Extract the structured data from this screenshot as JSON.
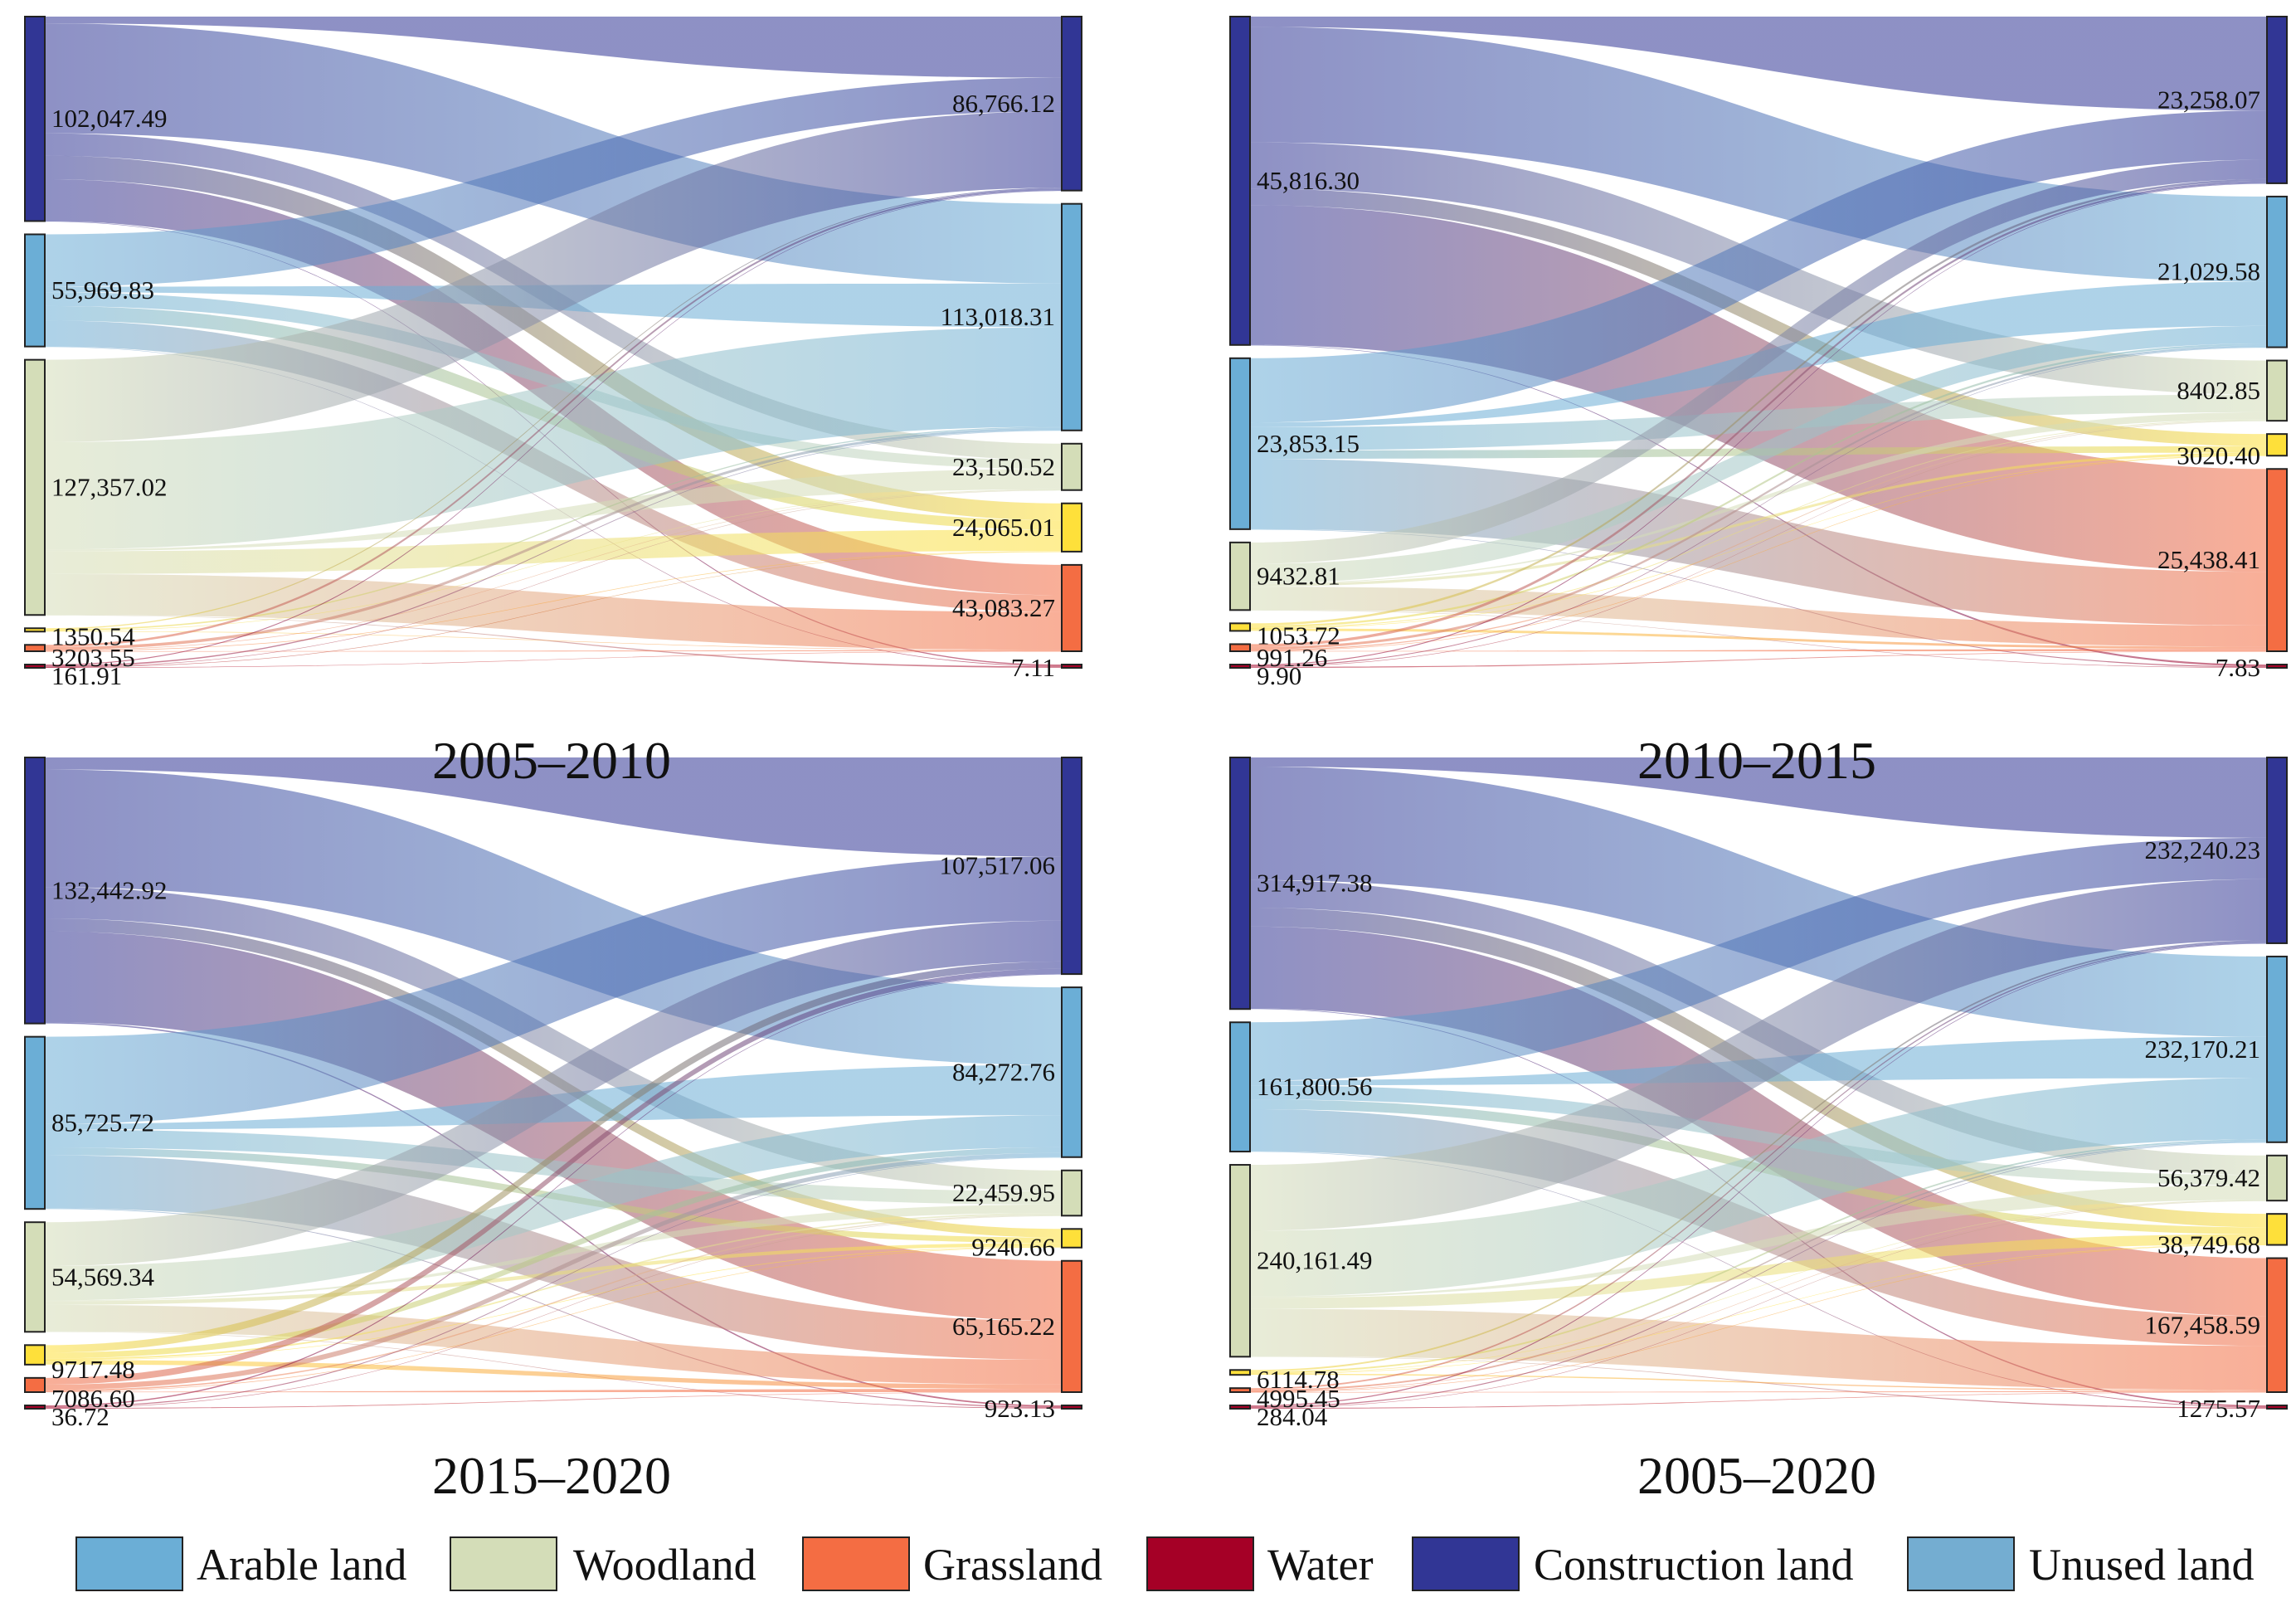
{
  "colors": {
    "Arable land": "#6BAED6",
    "Woodland": "#D4DDB8",
    "Grassland": "#F46D43",
    "Water": "#A50026",
    "Construction land": "#313695",
    "Unused land": "#FEE03A",
    "Unused land legend": "#74ADD1"
  },
  "legend": [
    {
      "label": "Arable land",
      "color": "#6BAED6"
    },
    {
      "label": "Woodland",
      "color": "#D4DDB8"
    },
    {
      "label": "Grassland",
      "color": "#F46D43"
    },
    {
      "label": "Water",
      "color": "#A50026"
    },
    {
      "label": "Construction land",
      "color": "#313695"
    },
    {
      "label": "Unused land",
      "color": "#74ADD1"
    }
  ],
  "panels": [
    {
      "title": "2005–2010",
      "left": [
        {
          "category": "Construction land",
          "label": "102,047.49",
          "value": 102047.49
        },
        {
          "category": "Arable land",
          "label": "55,969.83",
          "value": 55969.83
        },
        {
          "category": "Woodland",
          "label": "127,357.02",
          "value": 127357.02
        },
        {
          "category": "Unused land",
          "label": "1350.54",
          "value": 1350.54
        },
        {
          "category": "Grassland",
          "label": "3203.55",
          "value": 3203.55
        },
        {
          "category": "Water",
          "label": "161.91",
          "value": 161.91
        }
      ],
      "right": [
        {
          "category": "Construction land",
          "label": "86,766.12",
          "value": 86766.12
        },
        {
          "category": "Arable land",
          "label": "113,018.31",
          "value": 113018.31
        },
        {
          "category": "Woodland",
          "label": "23,150.52",
          "value": 23150.52
        },
        {
          "category": "Unused land",
          "label": "24,065.01",
          "value": 24065.01
        },
        {
          "category": "Grassland",
          "label": "43,083.27",
          "value": 43083.27
        },
        {
          "category": "Water",
          "label": "7.11",
          "value": 7.11
        }
      ]
    },
    {
      "title": "2010–2015",
      "left": [
        {
          "category": "Construction land",
          "label": "45,816.30",
          "value": 45816.3
        },
        {
          "category": "Arable land",
          "label": "23,853.15",
          "value": 23853.15
        },
        {
          "category": "Woodland",
          "label": "9432.81",
          "value": 9432.81
        },
        {
          "category": "Unused land",
          "label": "1053.72",
          "value": 1053.72
        },
        {
          "category": "Grassland",
          "label": "991.26",
          "value": 991.26
        },
        {
          "category": "Water",
          "label": "9.90",
          "value": 9.9
        }
      ],
      "right": [
        {
          "category": "Construction land",
          "label": "23,258.07",
          "value": 23258.07
        },
        {
          "category": "Arable land",
          "label": "21,029.58",
          "value": 21029.58
        },
        {
          "category": "Woodland",
          "label": "8402.85",
          "value": 8402.85
        },
        {
          "category": "Unused land",
          "label": "3020.40",
          "value": 3020.4
        },
        {
          "category": "Grassland",
          "label": "25,438.41",
          "value": 25438.41
        },
        {
          "category": "Water",
          "label": "7.83",
          "value": 7.83
        }
      ]
    },
    {
      "title": "2015–2020",
      "left": [
        {
          "category": "Construction land",
          "label": "132,442.92",
          "value": 132442.92
        },
        {
          "category": "Arable land",
          "label": "85,725.72",
          "value": 85725.72
        },
        {
          "category": "Woodland",
          "label": "54,569.34",
          "value": 54569.34
        },
        {
          "category": "Unused land",
          "label": "9717.48",
          "value": 9717.48
        },
        {
          "category": "Grassland",
          "label": "7086.60",
          "value": 7086.6
        },
        {
          "category": "Water",
          "label": "36.72",
          "value": 36.72
        }
      ],
      "right": [
        {
          "category": "Construction land",
          "label": "107,517.06",
          "value": 107517.06
        },
        {
          "category": "Arable land",
          "label": "84,272.76",
          "value": 84272.76
        },
        {
          "category": "Woodland",
          "label": "22,459.95",
          "value": 22459.95
        },
        {
          "category": "Unused land",
          "label": "9240.66",
          "value": 9240.66
        },
        {
          "category": "Grassland",
          "label": "65,165.22",
          "value": 65165.22
        },
        {
          "category": "Water",
          "label": "923.13",
          "value": 923.13
        }
      ]
    },
    {
      "title": "2005–2020",
      "left": [
        {
          "category": "Construction land",
          "label": "314,917.38",
          "value": 314917.38
        },
        {
          "category": "Arable land",
          "label": "161,800.56",
          "value": 161800.56
        },
        {
          "category": "Woodland",
          "label": "240,161.49",
          "value": 240161.49
        },
        {
          "category": "Unused land",
          "label": "6114.78",
          "value": 6114.78
        },
        {
          "category": "Grassland",
          "label": "4995.45",
          "value": 4995.45
        },
        {
          "category": "Water",
          "label": "284.04",
          "value": 284.04
        }
      ],
      "right": [
        {
          "category": "Construction land",
          "label": "232,240.23",
          "value": 232240.23
        },
        {
          "category": "Arable land",
          "label": "232,170.21",
          "value": 232170.21
        },
        {
          "category": "Woodland",
          "label": "56,379.42",
          "value": 56379.42
        },
        {
          "category": "Unused land",
          "label": "38,749.68",
          "value": 38749.68
        },
        {
          "category": "Grassland",
          "label": "167,458.59",
          "value": 167458.59
        },
        {
          "category": "Water",
          "label": "1275.57",
          "value": 1275.57
        }
      ]
    }
  ]
}
